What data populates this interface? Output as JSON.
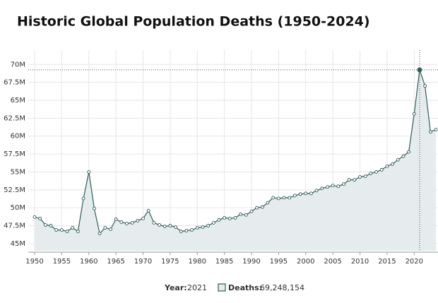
{
  "chart_data": {
    "type": "line",
    "title": "Historic Global Population Deaths (1950-2024)",
    "x": [
      1950,
      1951,
      1952,
      1953,
      1954,
      1955,
      1956,
      1957,
      1958,
      1959,
      1960,
      1961,
      1962,
      1963,
      1964,
      1965,
      1966,
      1967,
      1968,
      1969,
      1970,
      1971,
      1972,
      1973,
      1974,
      1975,
      1976,
      1977,
      1978,
      1979,
      1980,
      1981,
      1982,
      1983,
      1984,
      1985,
      1986,
      1987,
      1988,
      1989,
      1990,
      1991,
      1992,
      1993,
      1994,
      1995,
      1996,
      1997,
      1998,
      1999,
      2000,
      2001,
      2002,
      2003,
      2004,
      2005,
      2006,
      2007,
      2008,
      2009,
      2010,
      2011,
      2012,
      2013,
      2014,
      2015,
      2016,
      2017,
      2018,
      2019,
      2020,
      2021,
      2022,
      2023,
      2024
    ],
    "values": [
      48700000,
      48500000,
      47600000,
      47500000,
      46900000,
      46900000,
      46700000,
      47200000,
      46700000,
      51300000,
      55000000,
      49900000,
      46400000,
      47200000,
      47000000,
      48400000,
      48000000,
      47800000,
      47900000,
      48200000,
      48500000,
      49600000,
      47900000,
      47600000,
      47400000,
      47500000,
      47300000,
      46700000,
      46800000,
      46900000,
      47200000,
      47300000,
      47500000,
      47900000,
      48300000,
      48600000,
      48500000,
      48600000,
      49100000,
      49000000,
      49500000,
      50000000,
      50100000,
      50700000,
      51400000,
      51300000,
      51400000,
      51400000,
      51700000,
      51900000,
      52000000,
      52000000,
      52400000,
      52700000,
      52900000,
      53100000,
      53000000,
      53300000,
      53900000,
      53900000,
      54300000,
      54400000,
      54800000,
      55000000,
      55300000,
      55800000,
      56100000,
      56700000,
      57200000,
      57800000,
      63100000,
      69248154,
      67000000,
      60600000,
      60900000
    ],
    "color": "#2f5d56",
    "area_color": "#e6eced",
    "xlim": [
      1950,
      2024
    ],
    "xticks": [
      1950,
      1955,
      1960,
      1965,
      1970,
      1975,
      1980,
      1985,
      1990,
      1995,
      2000,
      2005,
      2010,
      2015,
      2020
    ],
    "ylim": [
      44000000,
      72000000
    ],
    "yticks": [
      {
        "value": 45000000,
        "label": "45M"
      },
      {
        "value": 47500000,
        "label": "47.5M"
      },
      {
        "value": 50000000,
        "label": "50M"
      },
      {
        "value": 52500000,
        "label": "52.5M"
      },
      {
        "value": 55000000,
        "label": "55M"
      },
      {
        "value": 57500000,
        "label": "57.5M"
      },
      {
        "value": 60000000,
        "label": "60M"
      },
      {
        "value": 62500000,
        "label": "62.5M"
      },
      {
        "value": 65000000,
        "label": "65M"
      },
      {
        "value": 67500000,
        "label": "67.5M"
      },
      {
        "value": 70000000,
        "label": "70M"
      }
    ],
    "grid": true,
    "tooltip": {
      "year_label": "Year:",
      "year": 2021,
      "deaths_label": "Deaths:",
      "deaths": "69,248,154"
    }
  }
}
